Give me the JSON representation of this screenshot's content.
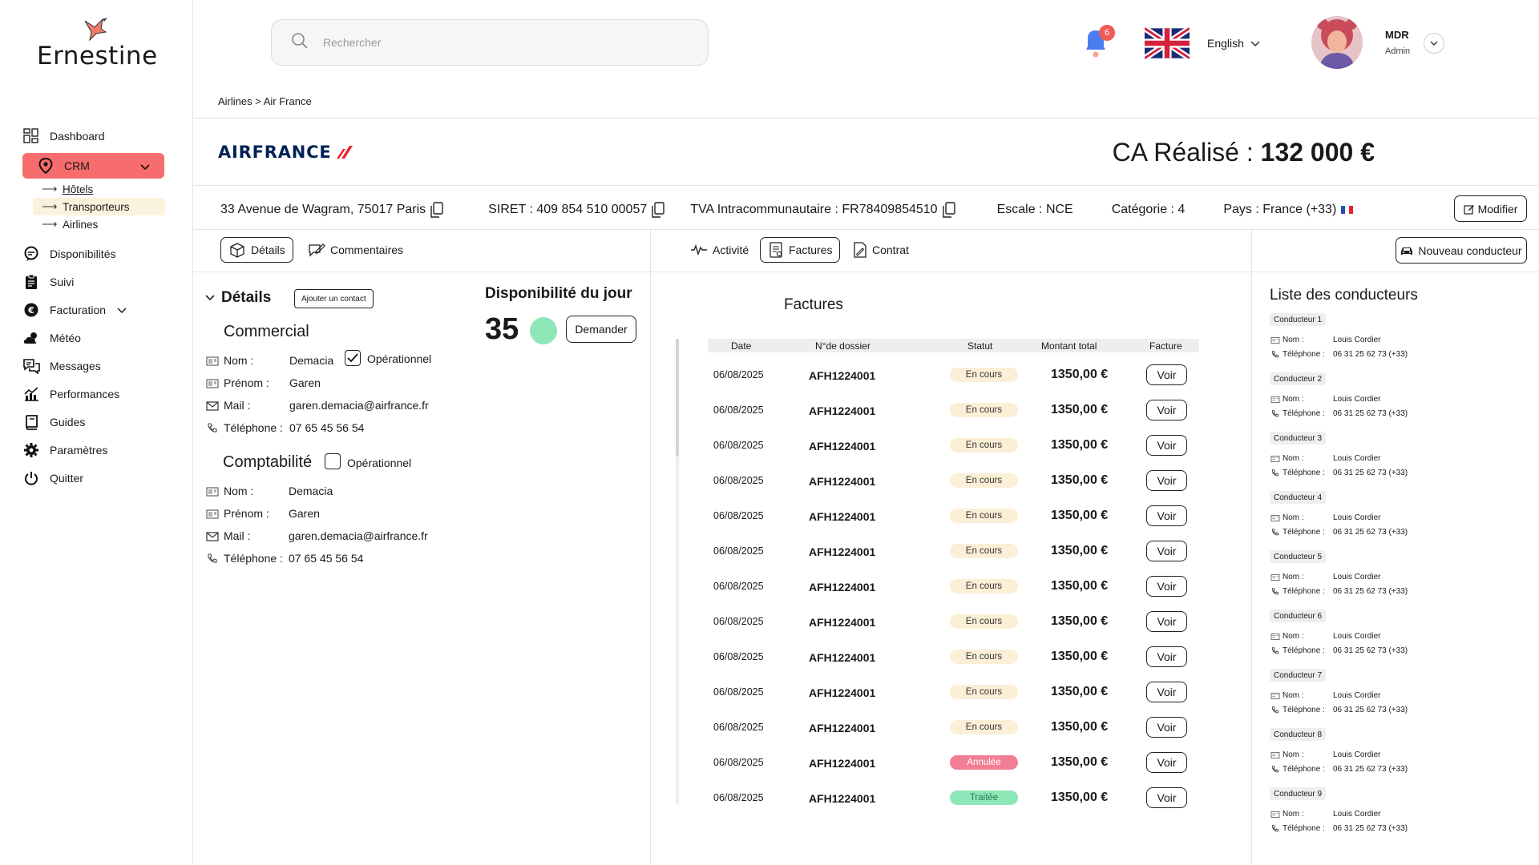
{
  "brand": {
    "name": "Ernestine"
  },
  "sidebar": {
    "items": [
      {
        "label": "Dashboard",
        "icon": "grid-icon"
      },
      {
        "label": "CRM",
        "icon": "location-pin-icon"
      },
      {
        "label": "Disponibilités",
        "icon": "chat-bubble-icon"
      },
      {
        "label": "Suivi",
        "icon": "clipboard-icon"
      },
      {
        "label": "Facturation",
        "icon": "euro-icon"
      },
      {
        "label": "Météo",
        "icon": "cloud-sun-icon"
      },
      {
        "label": "Messages",
        "icon": "messages-icon"
      },
      {
        "label": "Performances",
        "icon": "chart-trend-icon"
      },
      {
        "label": "Guides",
        "icon": "book-icon"
      },
      {
        "label": "Paramètres",
        "icon": "gear-icon"
      },
      {
        "label": "Quitter",
        "icon": "power-icon"
      }
    ],
    "crm_sub": [
      {
        "label": "Hôtels"
      },
      {
        "label": "Transporteurs"
      },
      {
        "label": "Airlines"
      }
    ],
    "active_color": "#f76c6c"
  },
  "topbar": {
    "search_placeholder": "Rechercher",
    "notifications_count": "6",
    "language": "English",
    "user_name": "MDR",
    "user_role": "Admin"
  },
  "breadcrumb": "Airlines > Air France",
  "company": {
    "logo_text": "AIRFRANCE",
    "ca_label": "CA Réalisé : ",
    "ca_value": "132 000 €",
    "address": "33 Avenue de Wagram, 75017 Paris",
    "siret": "SIRET : 409 854 510 00057",
    "tva": "TVA Intracommunautaire : FR78409854510",
    "escale": "Escale : NCE",
    "categorie": "Catégorie : 4",
    "pays": "Pays : France (+33)",
    "modifier": "Modifier"
  },
  "tabs": {
    "details": "Détails",
    "commentaires": "Commentaires",
    "activite": "Activité",
    "factures": "Factures",
    "contrat": "Contrat",
    "nouveau_conducteur": "Nouveau conducteur"
  },
  "details": {
    "title": "Détails",
    "add_contact": "Ajouter un contact",
    "commercial": {
      "title": "Commercial",
      "operational_label": "Opérationnel",
      "operational_checked": true,
      "nom_label": "Nom :",
      "nom": "Demacia",
      "prenom_label": "Prénom :",
      "prenom": "Garen",
      "mail_label": "Mail :",
      "mail": "garen.demacia@airfrance.fr",
      "tel_label": "Téléphone :",
      "tel": "07 65 45 56 54"
    },
    "comptabilite": {
      "title": "Comptabilité",
      "operational_label": "Opérationnel",
      "operational_checked": false,
      "nom_label": "Nom :",
      "nom": "Demacia",
      "prenom_label": "Prénom :",
      "prenom": "Garen",
      "mail_label": "Mail :",
      "mail": "garen.demacia@airfrance.fr",
      "tel_label": "Téléphone :",
      "tel": "07 65 45 56 54"
    }
  },
  "dispo": {
    "title": "Disponibilité du jour",
    "value": "35",
    "button": "Demander",
    "status_color": "#8de7b6"
  },
  "invoices": {
    "title": "Factures",
    "columns": [
      "Date",
      "N°de dossier",
      "Statut",
      "Montant total",
      "Facture"
    ],
    "rows": [
      {
        "date": "06/08/2025",
        "dossier": "AFH1224001",
        "statut": "En cours",
        "montant": "1350,00 €",
        "action": "Voir"
      },
      {
        "date": "06/08/2025",
        "dossier": "AFH1224001",
        "statut": "En cours",
        "montant": "1350,00 €",
        "action": "Voir"
      },
      {
        "date": "06/08/2025",
        "dossier": "AFH1224001",
        "statut": "En cours",
        "montant": "1350,00 €",
        "action": "Voir"
      },
      {
        "date": "06/08/2025",
        "dossier": "AFH1224001",
        "statut": "En cours",
        "montant": "1350,00 €",
        "action": "Voir"
      },
      {
        "date": "06/08/2025",
        "dossier": "AFH1224001",
        "statut": "En cours",
        "montant": "1350,00 €",
        "action": "Voir"
      },
      {
        "date": "06/08/2025",
        "dossier": "AFH1224001",
        "statut": "En cours",
        "montant": "1350,00 €",
        "action": "Voir"
      },
      {
        "date": "06/08/2025",
        "dossier": "AFH1224001",
        "statut": "En cours",
        "montant": "1350,00 €",
        "action": "Voir"
      },
      {
        "date": "06/08/2025",
        "dossier": "AFH1224001",
        "statut": "En cours",
        "montant": "1350,00 €",
        "action": "Voir"
      },
      {
        "date": "06/08/2025",
        "dossier": "AFH1224001",
        "statut": "En cours",
        "montant": "1350,00 €",
        "action": "Voir"
      },
      {
        "date": "06/08/2025",
        "dossier": "AFH1224001",
        "statut": "En cours",
        "montant": "1350,00 €",
        "action": "Voir"
      },
      {
        "date": "06/08/2025",
        "dossier": "AFH1224001",
        "statut": "En cours",
        "montant": "1350,00 €",
        "action": "Voir"
      },
      {
        "date": "06/08/2025",
        "dossier": "AFH1224001",
        "statut": "Annulée",
        "montant": "1350,00 €",
        "action": "Voir"
      },
      {
        "date": "06/08/2025",
        "dossier": "AFH1224001",
        "statut": "Traitée",
        "montant": "1350,00 €",
        "action": "Voir"
      }
    ],
    "status_colors": {
      "En cours": "#fbefd6",
      "Annulée": "#f37d93",
      "Traitée": "#8de7b6"
    }
  },
  "drivers": {
    "title": "Liste des conducteurs",
    "nom_label": "Nom :",
    "tel_label": "Téléphone :",
    "list": [
      {
        "tag": "Conducteur 1",
        "nom": "Louis Cordier",
        "tel": "06 31 25 62 73  (+33)"
      },
      {
        "tag": "Conducteur 2",
        "nom": "Louis Cordier",
        "tel": "06 31 25 62 73  (+33)"
      },
      {
        "tag": "Conducteur 3",
        "nom": "Louis Cordier",
        "tel": "06 31 25 62 73  (+33)"
      },
      {
        "tag": "Conducteur 4",
        "nom": "Louis Cordier",
        "tel": "06 31 25 62 73  (+33)"
      },
      {
        "tag": "Conducteur 5",
        "nom": "Louis Cordier",
        "tel": "06 31 25 62 73  (+33)"
      },
      {
        "tag": "Conducteur 6",
        "nom": "Louis Cordier",
        "tel": "06 31 25 62 73  (+33)"
      },
      {
        "tag": "Conducteur 7",
        "nom": "Louis Cordier",
        "tel": "06 31 25 62 73  (+33)"
      },
      {
        "tag": "Conducteur 8",
        "nom": "Louis Cordier",
        "tel": "06 31 25 62 73  (+33)"
      },
      {
        "tag": "Conducteur 9",
        "nom": "Louis Cordier",
        "tel": "06 31 25 62 73  (+33)"
      }
    ]
  }
}
